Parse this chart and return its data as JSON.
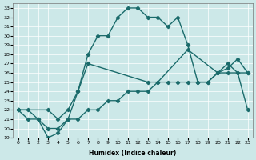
{
  "xlabel": "Humidex (Indice chaleur)",
  "bg_color": "#cce8e8",
  "line_color": "#1a6b6b",
  "xlim": [
    -0.5,
    23.5
  ],
  "ylim": [
    19,
    33.5
  ],
  "yticks": [
    19,
    20,
    21,
    22,
    23,
    24,
    25,
    26,
    27,
    28,
    29,
    30,
    31,
    32,
    33
  ],
  "xticks": [
    0,
    1,
    2,
    3,
    4,
    5,
    6,
    7,
    8,
    9,
    10,
    11,
    12,
    13,
    14,
    15,
    16,
    17,
    18,
    19,
    20,
    21,
    22,
    23
  ],
  "line1_x": [
    0,
    1,
    2,
    3,
    4,
    5,
    6,
    7,
    8,
    9,
    10,
    11,
    12,
    13,
    14,
    15,
    16,
    17,
    18,
    19,
    20,
    21,
    22,
    23
  ],
  "line1_y": [
    22,
    22,
    21,
    19,
    19.5,
    21,
    24,
    28,
    30,
    30,
    32,
    33,
    33,
    32,
    32,
    31,
    32,
    29,
    25,
    25,
    26,
    27,
    26,
    22
  ],
  "line2_x": [
    0,
    1,
    2,
    3,
    4,
    5,
    6,
    7,
    8,
    9,
    10,
    11,
    12,
    13,
    14,
    15,
    16,
    17,
    18,
    19,
    20,
    21,
    22,
    23
  ],
  "line2_y": [
    22,
    21,
    21,
    20,
    20,
    21,
    21,
    22,
    22,
    23,
    23,
    24,
    24,
    24,
    25,
    25,
    25,
    25,
    25,
    25,
    26,
    26,
    26,
    26
  ],
  "line3_x": [
    0,
    3,
    4,
    5,
    6,
    7,
    13,
    14,
    17,
    20,
    21,
    22,
    23
  ],
  "line3_y": [
    22,
    22,
    21,
    22,
    24,
    27,
    25,
    25,
    28.5,
    26,
    26.5,
    27.5,
    26
  ]
}
